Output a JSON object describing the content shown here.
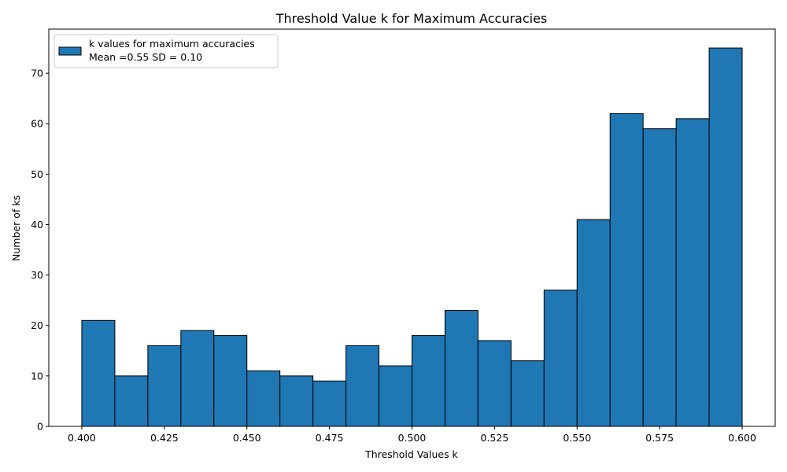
{
  "chart_data": {
    "type": "bar",
    "title": "Threshold Value k for Maximum Accuracies",
    "xlabel": "Threshold Values k",
    "ylabel": "Number of ks",
    "xlim": [
      0.39,
      0.61
    ],
    "ylim": [
      0,
      78.75
    ],
    "bin_width": 0.01,
    "bins": [
      {
        "x0": 0.4,
        "x1": 0.41,
        "value": 21
      },
      {
        "x0": 0.41,
        "x1": 0.42,
        "value": 10
      },
      {
        "x0": 0.42,
        "x1": 0.43,
        "value": 16
      },
      {
        "x0": 0.43,
        "x1": 0.44,
        "value": 19
      },
      {
        "x0": 0.44,
        "x1": 0.45,
        "value": 18
      },
      {
        "x0": 0.45,
        "x1": 0.46,
        "value": 11
      },
      {
        "x0": 0.46,
        "x1": 0.47,
        "value": 10
      },
      {
        "x0": 0.47,
        "x1": 0.48,
        "value": 9
      },
      {
        "x0": 0.48,
        "x1": 0.49,
        "value": 16
      },
      {
        "x0": 0.49,
        "x1": 0.5,
        "value": 12
      },
      {
        "x0": 0.5,
        "x1": 0.51,
        "value": 18
      },
      {
        "x0": 0.51,
        "x1": 0.52,
        "value": 23
      },
      {
        "x0": 0.52,
        "x1": 0.53,
        "value": 17
      },
      {
        "x0": 0.53,
        "x1": 0.54,
        "value": 13
      },
      {
        "x0": 0.54,
        "x1": 0.55,
        "value": 27
      },
      {
        "x0": 0.55,
        "x1": 0.56,
        "value": 41
      },
      {
        "x0": 0.56,
        "x1": 0.57,
        "value": 62
      },
      {
        "x0": 0.57,
        "x1": 0.58,
        "value": 59
      },
      {
        "x0": 0.58,
        "x1": 0.59,
        "value": 61
      },
      {
        "x0": 0.59,
        "x1": 0.6,
        "value": 75
      }
    ],
    "x_ticks": [
      0.4,
      0.425,
      0.45,
      0.475,
      0.5,
      0.525,
      0.55,
      0.575,
      0.6
    ],
    "x_tick_labels": [
      "0.400",
      "0.425",
      "0.450",
      "0.475",
      "0.500",
      "0.525",
      "0.550",
      "0.575",
      "0.600"
    ],
    "y_ticks": [
      0,
      10,
      20,
      30,
      40,
      50,
      60,
      70
    ],
    "y_tick_labels": [
      "0",
      "10",
      "20",
      "30",
      "40",
      "50",
      "60",
      "70"
    ],
    "series": [
      {
        "name": "k values for maximum accuracies",
        "color": "#1f77b4",
        "edge_color": "#000000"
      }
    ],
    "legend": {
      "placement": "top-left",
      "lines": [
        "k values for maximum accuracies",
        "Mean =0.55 SD = 0.10"
      ]
    },
    "grid": false
  }
}
